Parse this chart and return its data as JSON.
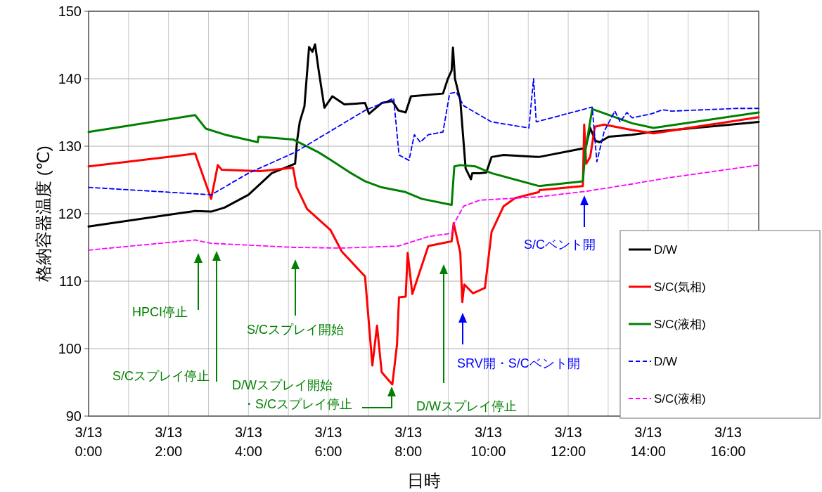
{
  "chart_data": {
    "type": "line",
    "xlabel": "日時",
    "ylabel": "格納容器温度 (℃)",
    "xlim": [
      "--03-13T00:00",
      "--03-13T16:46"
    ],
    "ylim": [
      90,
      150
    ],
    "xticks": [
      {
        "value": "--03-13T00:00",
        "label": "3/13 0:00"
      },
      {
        "value": "--03-13T01:00",
        "label": null
      },
      {
        "value": "--03-13T02:00",
        "label": "3/13 2:00"
      },
      {
        "value": "--03-13T03:00",
        "label": null
      },
      {
        "value": "--03-13T04:00",
        "label": "3/13 4:00"
      },
      {
        "value": "--03-13T05:00",
        "label": null
      },
      {
        "value": "--03-13T06:00",
        "label": "3/13 6:00"
      },
      {
        "value": "--03-13T07:00",
        "label": null
      },
      {
        "value": "--03-13T08:00",
        "label": "3/13 8:00"
      },
      {
        "value": "--03-13T09:00",
        "label": null
      },
      {
        "value": "--03-13T10:00",
        "label": "3/13 10:00"
      },
      {
        "value": "--03-13T11:00",
        "label": null
      },
      {
        "value": "--03-13T12:00",
        "label": "3/13 12:00"
      },
      {
        "value": "--03-13T13:00",
        "label": null
      },
      {
        "value": "--03-13T14:00",
        "label": "3/13 14:00"
      },
      {
        "value": "--03-13T15:00",
        "label": null
      },
      {
        "value": "--03-13T16:00",
        "label": "3/13 16:00"
      }
    ],
    "yticks": [
      90,
      100,
      110,
      120,
      130,
      140,
      150
    ],
    "grid": true,
    "legend": "bottom right",
    "marker": "none",
    "series": [
      {
        "name": "D/W",
        "color": "#000000",
        "line_style": "solid",
        "x": [
          "--03-13T00:00",
          "--03-13T02:40",
          "--03-13T03:04",
          "--03-13T03:24",
          "--03-13T04:00",
          "--03-13T04:35",
          "--03-13T05:10",
          "--03-13T05:13",
          "--03-13T05:17",
          "--03-13T05:24",
          "--03-13T05:31",
          "--03-13T05:36",
          "--03-13T05:40",
          "--03-13T05:45",
          "--03-13T05:54",
          "--03-13T06:06",
          "--03-13T06:24",
          "--03-13T06:55",
          "--03-13T07:01",
          "--03-13T07:20",
          "--03-13T07:36",
          "--03-13T07:45",
          "--03-13T07:56",
          "--03-13T08:04",
          "--03-13T08:52",
          "--03-13T08:59",
          "--03-13T09:05",
          "--03-13T09:07",
          "--03-13T09:10",
          "--03-13T09:18",
          "--03-13T09:26",
          "--03-13T09:34",
          "--03-13T09:36",
          "--03-13T09:47",
          "--03-13T09:57",
          "--03-13T10:05",
          "--03-13T10:23",
          "--03-13T11:16",
          "--03-13T12:19",
          "--03-13T12:26",
          "--03-13T12:33",
          "--03-13T12:41",
          "--03-13T12:47",
          "--03-13T13:01",
          "--03-13T13:36",
          "--03-13T14:05",
          "--03-13T16:46"
        ],
        "values": [
          118.1,
          120.4,
          120.3,
          120.9,
          122.8,
          126,
          127.4,
          130.8,
          133.6,
          135.9,
          144.7,
          144,
          145.1,
          141.5,
          135.7,
          137.4,
          136.2,
          136.4,
          134.8,
          136.4,
          136.7,
          135.3,
          135,
          137.4,
          137.8,
          139.9,
          141.2,
          144.6,
          140,
          136.8,
          126.7,
          125.1,
          126,
          126,
          126.1,
          128.4,
          128.7,
          128.4,
          129.6,
          129.7,
          132.7,
          130.8,
          130.6,
          131.4,
          131.7,
          132.1,
          133.6
        ]
      },
      {
        "name": "S/C(気相)",
        "color": "#ff0000",
        "line_style": "solid",
        "x": [
          "--03-13T00:00",
          "--03-13T02:40",
          "--03-13T03:04",
          "--03-13T03:14",
          "--03-13T03:20",
          "--03-13T04:17",
          "--03-13T05:07",
          "--03-13T05:12",
          "--03-13T05:28",
          "--03-13T06:03",
          "--03-13T06:20",
          "--03-13T06:55",
          "--03-13T07:06",
          "--03-13T07:13",
          "--03-13T07:20",
          "--03-13T07:27",
          "--03-13T07:36",
          "--03-13T07:43",
          "--03-13T07:46",
          "--03-13T07:56",
          "--03-13T07:59",
          "--03-13T08:06",
          "--03-13T08:30",
          "--03-13T08:55",
          "--03-13T09:05",
          "--03-13T09:08",
          "--03-13T09:18",
          "--03-13T09:21",
          "--03-13T09:24",
          "--03-13T09:37",
          "--03-13T09:55",
          "--03-13T10:05",
          "--03-13T10:23",
          "--03-13T10:40",
          "--03-13T11:16",
          "--03-13T11:17",
          "--03-13T12:22",
          "--03-13T12:24",
          "--03-13T12:27",
          "--03-13T12:33",
          "--03-13T12:40",
          "--03-13T12:54",
          "--03-13T13:36",
          "--03-13T14:08",
          "--03-13T16:46"
        ],
        "values": [
          127,
          128.9,
          122.2,
          127.2,
          126.5,
          126.3,
          126.8,
          124,
          120.7,
          117.6,
          114.4,
          110.7,
          97.5,
          103.4,
          96.5,
          95.7,
          94.7,
          100.6,
          107.6,
          107.7,
          114.2,
          108.1,
          115.2,
          115.7,
          115.9,
          118.6,
          114.2,
          106.9,
          109.5,
          108.2,
          109,
          117.3,
          121.1,
          122.3,
          123.2,
          123.5,
          124.1,
          133.2,
          127.4,
          128.4,
          132.9,
          133.2,
          132.4,
          131.9,
          134.3
        ]
      },
      {
        "name": "S/C(液相)",
        "color": "#008000",
        "line_style": "solid",
        "x": [
          "--03-13T00:00",
          "--03-13T02:40",
          "--03-13T02:56",
          "--03-13T03:25",
          "--03-13T04:14",
          "--03-13T04:15",
          "--03-13T05:07",
          "--03-13T05:45",
          "--03-13T06:03",
          "--03-13T06:34",
          "--03-13T06:55",
          "--03-13T07:20",
          "--03-13T07:56",
          "--03-13T08:20",
          "--03-13T09:05",
          "--03-13T09:09",
          "--03-13T09:18",
          "--03-13T09:41",
          "--03-13T10:05",
          "--03-13T11:16",
          "--03-13T12:22",
          "--03-13T12:26",
          "--03-13T12:36",
          "--03-13T13:36",
          "--03-13T14:08",
          "--03-13T16:46"
        ],
        "values": [
          132.1,
          134.6,
          132.6,
          131.7,
          130.6,
          131.4,
          131,
          129.1,
          128,
          126,
          124.8,
          123.9,
          123.2,
          122.2,
          121.3,
          127,
          127.2,
          127,
          126,
          124.1,
          124.8,
          129.5,
          135.5,
          133.4,
          132.7,
          135
        ]
      },
      {
        "name": "D/W",
        "color": "#0000ff",
        "line_style": "dashed",
        "x": [
          "--03-13T00:00",
          "--03-13T03:04",
          "--03-13T04:00",
          "--03-13T05:10",
          "--03-13T06:55",
          "--03-13T07:38",
          "--03-13T07:46",
          "--03-13T08:01",
          "--03-13T08:09",
          "--03-13T08:18",
          "--03-13T08:30",
          "--03-13T08:52",
          "--03-13T09:02",
          "--03-13T09:12",
          "--03-13T09:23",
          "--03-13T10:05",
          "--03-13T11:01",
          "--03-13T11:08",
          "--03-13T11:12",
          "--03-13T12:36",
          "--03-13T12:43",
          "--03-13T12:54",
          "--03-13T13:10",
          "--03-13T13:18",
          "--03-13T13:28",
          "--03-13T13:36",
          "--03-13T14:05",
          "--03-13T14:22",
          "--03-13T14:35",
          "--03-13T16:14",
          "--03-13T16:46"
        ],
        "values": [
          123.9,
          122.8,
          126,
          129.1,
          135.3,
          137.1,
          128.7,
          127.9,
          131.7,
          130.6,
          131.7,
          132.1,
          137.8,
          138,
          136,
          133.6,
          132.7,
          140,
          133.6,
          135.8,
          127.7,
          132.2,
          135.2,
          133.6,
          135,
          134.2,
          134.8,
          135.4,
          135.2,
          135.6,
          135.6
        ]
      },
      {
        "name": "S/C(液相)",
        "color": "#ff00ff",
        "line_style": "dashed",
        "x": [
          "--03-13T00:00",
          "--03-13T02:40",
          "--03-13T03:04",
          "--03-13T05:10",
          "--03-13T06:20",
          "--03-13T07:45",
          "--03-13T08:30",
          "--03-13T09:05",
          "--03-13T09:09",
          "--03-13T09:23",
          "--03-13T09:47",
          "--03-13T11:16",
          "--03-13T12:26",
          "--03-13T13:36",
          "--03-13T14:29",
          "--03-13T16:46"
        ],
        "values": [
          114.6,
          116.1,
          115.6,
          115,
          114.9,
          115.2,
          116.6,
          117.1,
          118.6,
          121.1,
          122,
          122.5,
          123.3,
          124.4,
          125.3,
          127.2
        ]
      }
    ],
    "annotations": [
      "HPCI停止",
      "S/Cスプレイ停止",
      "S/Cスプレイ開始",
      "D/Wスプレイ開始・S/Cスプレイ停止",
      "D/Wスプレイ停止",
      "SRV開・S/Cベント開",
      "S/Cベント開"
    ]
  }
}
